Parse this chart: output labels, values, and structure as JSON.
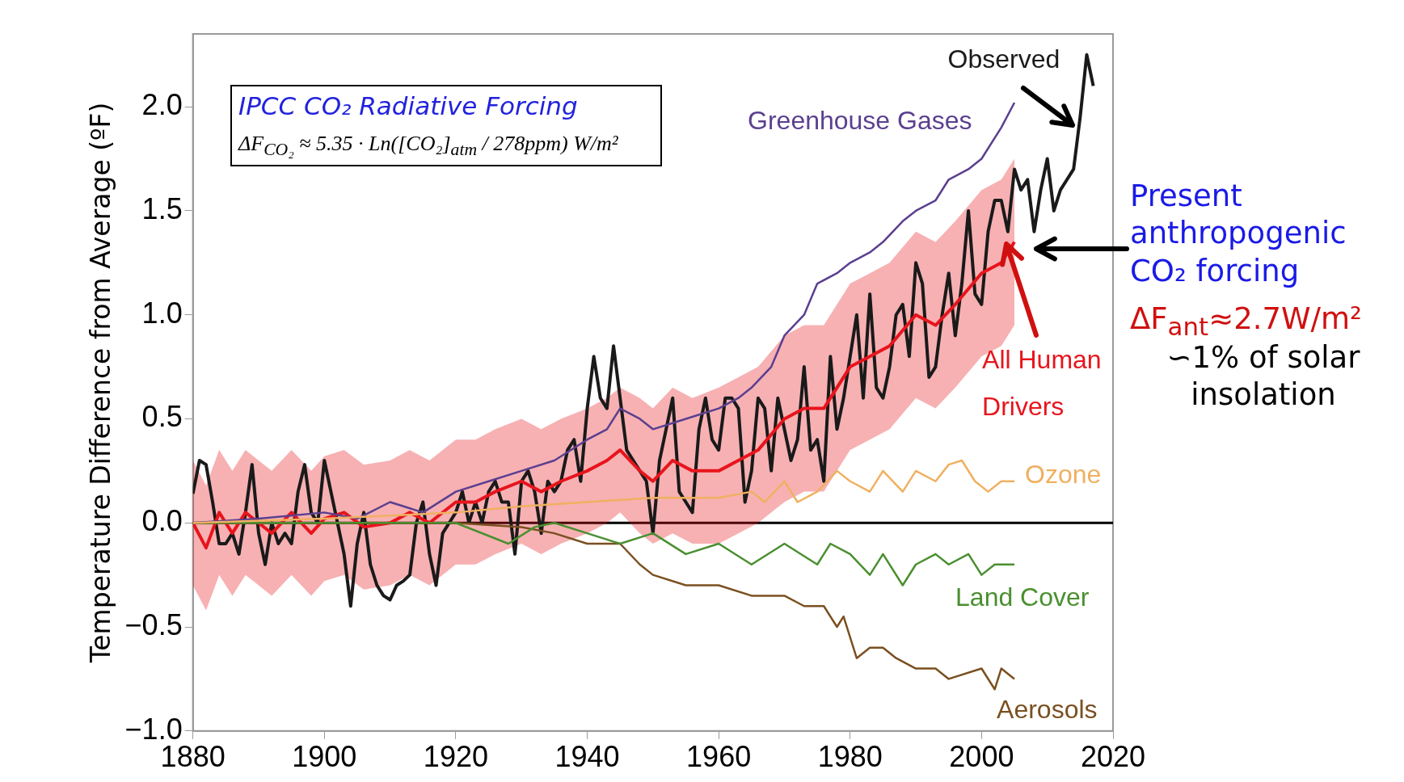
{
  "chart_data": {
    "type": "line",
    "ylabel": "Temperature Difference from Average (ºF)",
    "xlim": [
      1880,
      2020
    ],
    "xticks": [
      1880,
      1900,
      1920,
      1940,
      1960,
      1980,
      2000,
      2020
    ],
    "ylim": [
      -1.0,
      2.35
    ],
    "yticks": [
      {
        "value": -1,
        "label": "−1.0"
      },
      {
        "value": -0.5,
        "label": "−0.5"
      },
      {
        "value": 0,
        "label": "0.0"
      },
      {
        "value": 0.5,
        "label": "0.5"
      },
      {
        "value": 1,
        "label": "1.0"
      },
      {
        "value": 1.5,
        "label": "1.5"
      },
      {
        "value": 2,
        "label": "2.0"
      }
    ],
    "grid": false,
    "legend": false,
    "marker": "none",
    "line_style": "solid",
    "ref_lines": [
      {
        "axis": "y",
        "value": 0,
        "color": "#000000"
      }
    ],
    "annotations": [
      "IPCC CO₂ Radiative Forcing",
      "ΔF$_{CO₂}$ ≈ 5.35 · Ln([CO₂]$_{atm}$ / 278ppm) W/m²",
      "Present anthropogenic CO₂ forcing",
      "ΔF$_{ant}$≈2.7W/m²",
      "∽1% of solar insolation"
    ],
    "series": [
      {
        "name": "Ozone",
        "color": "#f0b060",
        "x": [
          1880,
          1900,
          1920,
          1930,
          1940,
          1950,
          1960,
          1965,
          1967,
          1970,
          1972,
          1975,
          1978,
          1980,
          1983,
          1985,
          1988,
          1990,
          1993,
          1995,
          1997,
          1999,
          2001,
          2003,
          2005
        ],
        "values": [
          0,
          0.02,
          0.05,
          0.08,
          0.1,
          0.12,
          0.12,
          0.15,
          0.1,
          0.2,
          0.1,
          0.15,
          0.25,
          0.2,
          0.15,
          0.25,
          0.15,
          0.25,
          0.2,
          0.28,
          0.3,
          0.2,
          0.15,
          0.2,
          0.2
        ]
      },
      {
        "name": "Land Cover",
        "color": "#4a8f30",
        "x": [
          1880,
          1900,
          1920,
          1928,
          1932,
          1935,
          1940,
          1945,
          1950,
          1955,
          1960,
          1965,
          1970,
          1975,
          1977,
          1980,
          1983,
          1985,
          1988,
          1990,
          1993,
          1995,
          1998,
          2000,
          2002,
          2005
        ],
        "values": [
          0,
          0,
          0,
          -0.1,
          -0.02,
          0,
          -0.05,
          -0.1,
          -0.05,
          -0.15,
          -0.1,
          -0.2,
          -0.1,
          -0.2,
          -0.1,
          -0.15,
          -0.25,
          -0.15,
          -0.3,
          -0.2,
          -0.15,
          -0.2,
          -0.15,
          -0.25,
          -0.2,
          -0.2
        ]
      },
      {
        "name": "Aerosols",
        "color": "#7a5020",
        "x": [
          1880,
          1900,
          1920,
          1930,
          1935,
          1940,
          1945,
          1948,
          1950,
          1955,
          1960,
          1965,
          1970,
          1973,
          1976,
          1978,
          1979,
          1981,
          1983,
          1985,
          1987,
          1990,
          1993,
          1995,
          2000,
          2002,
          2003,
          2005
        ],
        "values": [
          0,
          0,
          0,
          -0.02,
          -0.05,
          -0.1,
          -0.1,
          -0.2,
          -0.25,
          -0.3,
          -0.3,
          -0.35,
          -0.35,
          -0.4,
          -0.4,
          -0.5,
          -0.45,
          -0.65,
          -0.6,
          -0.6,
          -0.65,
          -0.7,
          -0.7,
          -0.75,
          -0.7,
          -0.8,
          -0.7,
          -0.75
        ]
      },
      {
        "name": "Greenhouse Gases",
        "color": "#5b3f8f",
        "x": [
          1880,
          1890,
          1900,
          1905,
          1910,
          1915,
          1920,
          1925,
          1930,
          1935,
          1940,
          1943,
          1945,
          1948,
          1950,
          1955,
          1960,
          1963,
          1965,
          1968,
          1970,
          1973,
          1975,
          1978,
          1980,
          1983,
          1985,
          1988,
          1990,
          1993,
          1995,
          1998,
          2000,
          2003,
          2005
        ],
        "values": [
          0,
          0.02,
          0.05,
          0.02,
          0.1,
          0.05,
          0.15,
          0.2,
          0.25,
          0.3,
          0.4,
          0.45,
          0.55,
          0.5,
          0.45,
          0.5,
          0.55,
          0.6,
          0.65,
          0.75,
          0.9,
          1.0,
          1.15,
          1.2,
          1.25,
          1.3,
          1.35,
          1.45,
          1.5,
          1.55,
          1.65,
          1.7,
          1.75,
          1.9,
          2.02
        ]
      },
      {
        "name": "All Human Drivers",
        "color": "#e8141c",
        "x": [
          1880,
          1882,
          1884,
          1886,
          1888,
          1890,
          1892,
          1895,
          1898,
          1900,
          1903,
          1906,
          1910,
          1913,
          1916,
          1920,
          1923,
          1926,
          1930,
          1933,
          1936,
          1940,
          1943,
          1945,
          1948,
          1950,
          1953,
          1956,
          1960,
          1963,
          1966,
          1970,
          1973,
          1976,
          1980,
          1983,
          1986,
          1990,
          1993,
          1996,
          2000,
          2003,
          2005
        ],
        "values": [
          0.0,
          -0.12,
          0.05,
          -0.05,
          0.05,
          0.0,
          -0.05,
          0.05,
          -0.05,
          0.02,
          0.05,
          -0.02,
          0.0,
          0.05,
          0.0,
          0.1,
          0.1,
          0.15,
          0.2,
          0.15,
          0.2,
          0.25,
          0.3,
          0.35,
          0.25,
          0.2,
          0.3,
          0.25,
          0.25,
          0.3,
          0.35,
          0.5,
          0.55,
          0.55,
          0.75,
          0.8,
          0.85,
          1.0,
          0.95,
          1.05,
          1.2,
          1.25,
          1.35
        ],
        "lower": [
          -0.3,
          -0.42,
          -0.25,
          -0.35,
          -0.25,
          -0.3,
          -0.35,
          -0.25,
          -0.35,
          -0.28,
          -0.25,
          -0.32,
          -0.3,
          -0.25,
          -0.3,
          -0.2,
          -0.2,
          -0.15,
          -0.1,
          -0.15,
          -0.1,
          -0.05,
          0.0,
          0.05,
          -0.05,
          -0.1,
          -0.05,
          -0.1,
          -0.1,
          -0.05,
          0.0,
          0.1,
          0.15,
          0.15,
          0.35,
          0.4,
          0.45,
          0.6,
          0.55,
          0.65,
          0.8,
          0.85,
          0.95
        ],
        "upper": [
          0.3,
          0.18,
          0.35,
          0.25,
          0.35,
          0.3,
          0.25,
          0.35,
          0.25,
          0.32,
          0.35,
          0.28,
          0.3,
          0.35,
          0.3,
          0.4,
          0.4,
          0.45,
          0.5,
          0.45,
          0.5,
          0.55,
          0.6,
          0.65,
          0.6,
          0.55,
          0.65,
          0.6,
          0.65,
          0.7,
          0.75,
          0.9,
          0.95,
          0.95,
          1.15,
          1.2,
          1.25,
          1.4,
          1.35,
          1.45,
          1.6,
          1.65,
          1.75
        ]
      },
      {
        "name": "Observed",
        "color": "#1a1a1a",
        "x": [
          1880,
          1881,
          1882,
          1883,
          1884,
          1885,
          1886,
          1887,
          1888,
          1889,
          1890,
          1891,
          1892,
          1893,
          1894,
          1895,
          1896,
          1897,
          1898,
          1899,
          1900,
          1901,
          1902,
          1903,
          1904,
          1905,
          1906,
          1907,
          1908,
          1909,
          1910,
          1911,
          1912,
          1913,
          1914,
          1915,
          1916,
          1917,
          1918,
          1919,
          1920,
          1921,
          1922,
          1923,
          1924,
          1925,
          1926,
          1927,
          1928,
          1929,
          1930,
          1931,
          1932,
          1933,
          1934,
          1935,
          1936,
          1937,
          1938,
          1939,
          1940,
          1941,
          1942,
          1943,
          1944,
          1945,
          1946,
          1947,
          1948,
          1949,
          1950,
          1951,
          1952,
          1953,
          1954,
          1955,
          1956,
          1957,
          1958,
          1959,
          1960,
          1961,
          1962,
          1963,
          1964,
          1965,
          1966,
          1967,
          1968,
          1969,
          1970,
          1971,
          1972,
          1973,
          1974,
          1975,
          1976,
          1977,
          1978,
          1979,
          1980,
          1981,
          1982,
          1983,
          1984,
          1985,
          1986,
          1987,
          1988,
          1989,
          1990,
          1991,
          1992,
          1993,
          1994,
          1995,
          1996,
          1997,
          1998,
          1999,
          2000,
          2001,
          2002,
          2003,
          2004,
          2005,
          2006,
          2007,
          2008,
          2009,
          2010,
          2011,
          2012,
          2013,
          2014,
          2015,
          2016,
          2017
        ],
        "values": [
          0.14,
          0.3,
          0.28,
          0.1,
          -0.1,
          -0.1,
          -0.05,
          -0.15,
          0.05,
          0.28,
          -0.05,
          -0.2,
          0.0,
          -0.1,
          -0.05,
          -0.1,
          0.15,
          0.28,
          0.05,
          0.0,
          0.3,
          0.15,
          0.0,
          -0.15,
          -0.4,
          -0.1,
          0.05,
          -0.2,
          -0.3,
          -0.35,
          -0.37,
          -0.3,
          -0.28,
          -0.25,
          0.0,
          0.1,
          -0.15,
          -0.3,
          -0.05,
          0.0,
          0.05,
          0.15,
          0.0,
          0.1,
          0.0,
          0.15,
          0.2,
          0.1,
          0.1,
          -0.15,
          0.2,
          0.25,
          0.15,
          -0.05,
          0.2,
          0.15,
          0.2,
          0.35,
          0.4,
          0.2,
          0.55,
          0.8,
          0.6,
          0.55,
          0.85,
          0.6,
          0.35,
          0.3,
          0.25,
          0.2,
          -0.05,
          0.3,
          0.45,
          0.6,
          0.15,
          0.1,
          0.05,
          0.45,
          0.6,
          0.4,
          0.35,
          0.6,
          0.6,
          0.55,
          0.1,
          0.25,
          0.6,
          0.55,
          0.25,
          0.6,
          0.45,
          0.3,
          0.4,
          0.75,
          0.35,
          0.4,
          0.2,
          0.8,
          0.45,
          0.6,
          0.8,
          1.0,
          0.6,
          1.1,
          0.65,
          0.6,
          0.75,
          1.0,
          1.05,
          0.8,
          1.25,
          1.15,
          0.7,
          0.75,
          1.0,
          1.2,
          0.9,
          1.15,
          1.5,
          1.1,
          1.05,
          1.4,
          1.55,
          1.55,
          1.4,
          1.7,
          1.6,
          1.65,
          1.4,
          1.6,
          1.75,
          1.5,
          1.6,
          1.65,
          1.7,
          1.95,
          2.25,
          2.1
        ]
      }
    ]
  }
}
